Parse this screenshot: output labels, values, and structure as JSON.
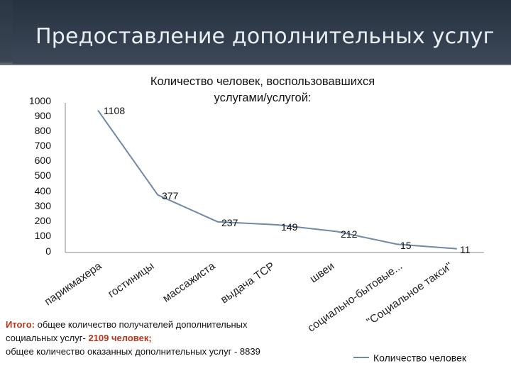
{
  "slide": {
    "title": "Предоставление дополнительных услуг"
  },
  "summary": {
    "label": "Итого:",
    "line1": "общее количество получателей дополнительных",
    "line2_prefix": "социальных услуг- ",
    "line2_value": "2109 человек;",
    "line3": "общее количество оказанных дополнительных услуг - 8839"
  },
  "colors": {
    "line": "#6f89a6",
    "axis": "#888888",
    "highlight": "#b8341a",
    "header": "#2f3b49"
  },
  "chart_data": {
    "type": "line",
    "title_line1": "Количество человек, воспользовавшихся",
    "title_line2": "услугами/услугой:",
    "categories": [
      "парикмахера",
      "гостиницы",
      "массажиста",
      "выдача ТСР",
      "швеи",
      "социально-бытовые...",
      "\"Социальное такси\""
    ],
    "y_ticks": [
      "1000",
      "900",
      "800",
      "700",
      "600",
      "500",
      "400",
      "300",
      "200",
      "100",
      "0"
    ],
    "ylim": [
      0,
      1000
    ],
    "grid": false,
    "legend_position": "bottom-right",
    "series": [
      {
        "name": "Количество человек",
        "values": [
          1108,
          377,
          237,
          149,
          212,
          15,
          11
        ],
        "plotted": [
          950,
          385,
          205,
          185,
          140,
          55,
          25
        ],
        "data_labels": [
          "1108",
          "377",
          "237",
          "149",
          "212",
          "15",
          "11"
        ]
      }
    ]
  }
}
